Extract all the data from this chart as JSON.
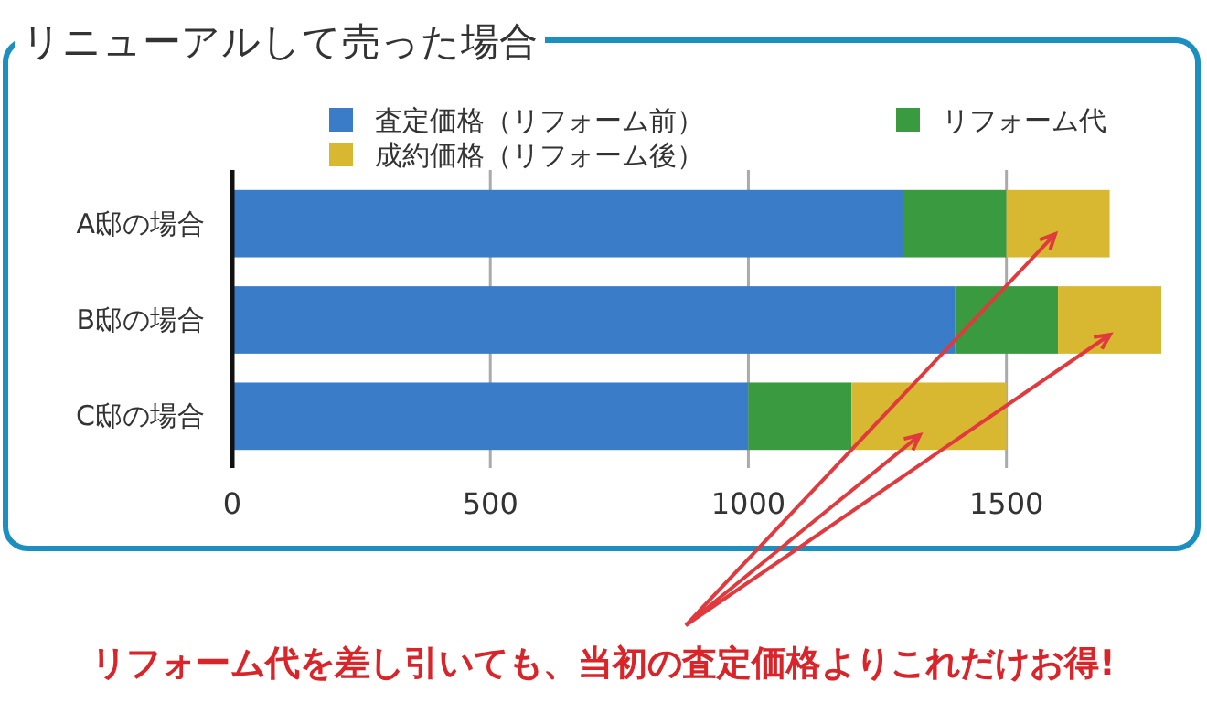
{
  "chart_data": {
    "type": "bar",
    "orientation": "horizontal",
    "stacked": true,
    "title": "リニューアルして売った場合",
    "categories": [
      "A邸の場合",
      "B邸の場合",
      "C邸の場合"
    ],
    "series": [
      {
        "name": "査定価格（リフォーム前）",
        "color": "#3a7cc8",
        "values": [
          1300,
          1400,
          1000
        ]
      },
      {
        "name": "リフォーム代",
        "color": "#3a9a40",
        "values": [
          200,
          200,
          200
        ]
      },
      {
        "name": "成約価格（リフォーム後）",
        "color": "#d8b830",
        "values": [
          200,
          200,
          300
        ]
      }
    ],
    "xlim": [
      0,
      1800
    ],
    "xticks": [
      0,
      500,
      1000,
      1500
    ],
    "grid": "x",
    "legend": "top",
    "annotations": [
      "リフォーム代を差し引いても、当初の査定価格よりこれだけお得!"
    ]
  }
}
